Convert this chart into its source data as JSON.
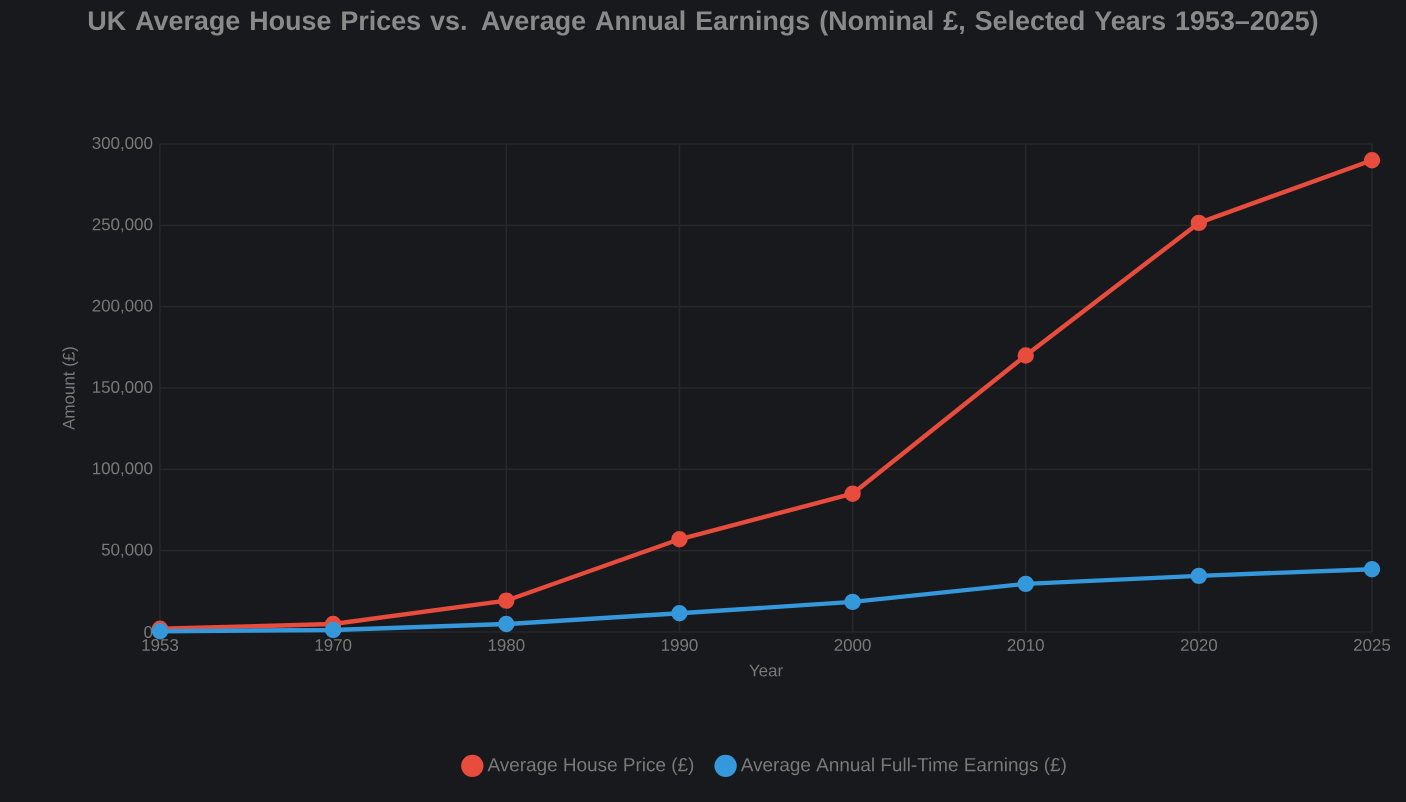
{
  "chart_data": {
    "type": "line",
    "title": "UK Average House Prices vs. Average Annual Earnings (Nominal £, Selected Years 1953–2025)",
    "xlabel": "Year",
    "ylabel": "Amount (£)",
    "categories": [
      "1953",
      "1970",
      "1980",
      "1990",
      "2000",
      "2010",
      "2020",
      "2025"
    ],
    "series": [
      {
        "name": "Average House Price (£)",
        "color": "#e74c3c",
        "values": [
          2000,
          4900,
          19300,
          57000,
          85000,
          170000,
          251500,
          290000
        ]
      },
      {
        "name": "Average Annual Full-Time Earnings (£)",
        "color": "#3498db",
        "values": [
          500,
          1200,
          4900,
          11500,
          18500,
          29600,
          34500,
          38600
        ]
      }
    ],
    "ylim": [
      0,
      300000
    ],
    "yticks": [
      {
        "value": 0,
        "label": "0"
      },
      {
        "value": 50000,
        "label": "50,000"
      },
      {
        "value": 100000,
        "label": "100,000"
      },
      {
        "value": 150000,
        "label": "150,000"
      },
      {
        "value": 200000,
        "label": "200,000"
      },
      {
        "value": 250000,
        "label": "250,000"
      },
      {
        "value": 300000,
        "label": "300,000"
      }
    ],
    "grid": true,
    "legend": "bottom",
    "marker": "circle",
    "line_style": "solid"
  }
}
